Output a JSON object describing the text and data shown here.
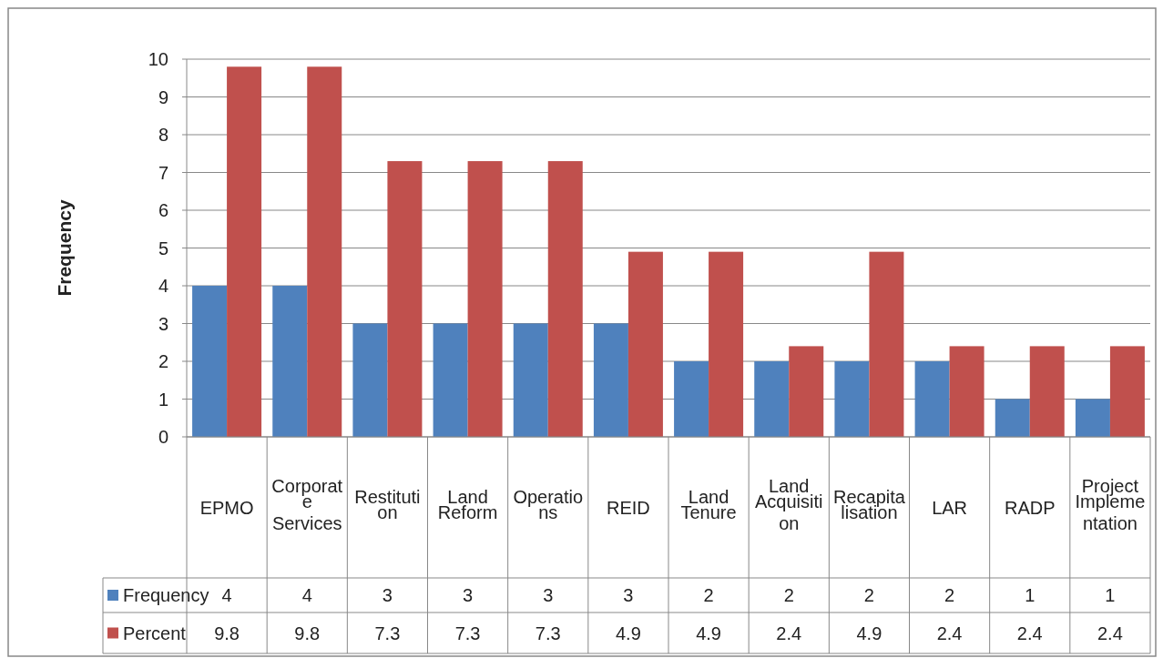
{
  "chart_data": {
    "type": "bar",
    "ylabel": "Frequency",
    "categories": [
      "EPMO",
      "Corporate Services",
      "Restitution",
      "Land Reform",
      "Operations",
      "REID",
      "Land Tenure",
      "Land Acquisition",
      "Recapitalisation",
      "LAR",
      "RADP",
      "Project Implementation"
    ],
    "series": [
      {
        "name": "Frequency",
        "color": "#4f81bd",
        "values": [
          4,
          4,
          3,
          3,
          3,
          3,
          2,
          2,
          2,
          2,
          1,
          1
        ]
      },
      {
        "name": "Percent",
        "color": "#c0504d",
        "values": [
          9.8,
          9.8,
          7.3,
          7.3,
          7.3,
          4.9,
          4.9,
          2.4,
          4.9,
          2.4,
          2.4,
          2.4
        ]
      }
    ],
    "ylim": [
      0,
      10
    ],
    "yticks": [
      0,
      1,
      2,
      3,
      4,
      5,
      6,
      7,
      8,
      9,
      10
    ],
    "grid": "y",
    "legend": "bottom",
    "data_labels": true
  }
}
